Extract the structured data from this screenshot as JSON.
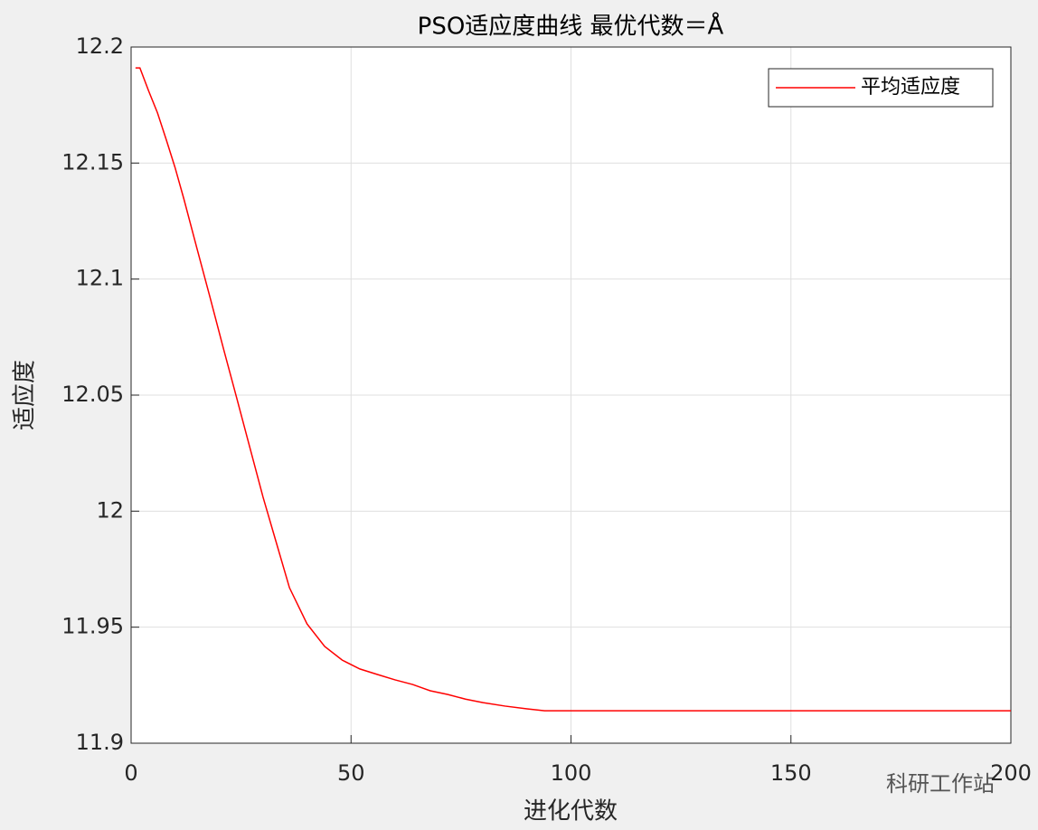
{
  "chart_data": {
    "type": "line",
    "title": "PSO适应度曲线  最优代数＝Å",
    "x_label": "进化代数",
    "y_label": "适应度",
    "watermark": "科研工作站",
    "x": [
      1,
      2,
      4,
      6,
      8,
      10,
      12,
      15,
      18,
      21,
      24,
      27,
      30,
      33,
      36,
      40,
      44,
      48,
      52,
      56,
      60,
      64,
      68,
      72,
      76,
      80,
      85,
      90,
      94,
      100,
      150,
      200
    ],
    "series": [
      {
        "name": "平均适应度",
        "color": "#ff0000",
        "values": [
          12.191,
          12.191,
          12.181,
          12.1716,
          12.16,
          12.148,
          12.1345,
          12.113,
          12.0917,
          12.07,
          12.0488,
          12.0274,
          12.006,
          11.9865,
          11.967,
          11.9514,
          11.9417,
          11.9358,
          11.932,
          11.9296,
          11.9273,
          11.9253,
          11.9226,
          11.921,
          11.919,
          11.9175,
          11.916,
          11.9148,
          11.914,
          11.914,
          11.914,
          11.914
        ]
      }
    ],
    "xlim": [
      0,
      200
    ],
    "xticks": [
      0,
      50,
      100,
      150,
      200
    ],
    "ylim": [
      11.9,
      12.2
    ],
    "yticks": [
      11.9,
      11.95,
      12,
      12.05,
      12.1,
      12.15,
      12.2
    ],
    "grid": true,
    "legend": "top-right"
  }
}
